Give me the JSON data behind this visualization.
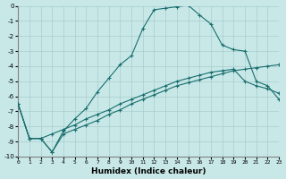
{
  "xlabel": "Humidex (Indice chaleur)",
  "bg_color": "#c8e8e8",
  "grid_color": "#a8cccc",
  "line_color": "#1a6e6e",
  "xlim": [
    0,
    23
  ],
  "ylim": [
    -10,
    0
  ],
  "ytick_vals": [
    0,
    -1,
    -2,
    -3,
    -4,
    -5,
    -6,
    -7,
    -8,
    -9,
    -10
  ],
  "xtick_vals": [
    0,
    1,
    2,
    3,
    4,
    5,
    6,
    7,
    8,
    9,
    10,
    11,
    12,
    13,
    14,
    15,
    16,
    17,
    18,
    19,
    20,
    21,
    22,
    23
  ],
  "line_main_x": [
    0,
    1,
    2,
    3,
    4,
    5,
    6,
    7,
    8,
    9,
    10,
    11,
    12,
    13,
    14,
    15,
    16,
    17,
    18,
    19,
    20,
    21,
    22,
    23
  ],
  "line_main_y": [
    -6.5,
    -8.8,
    -8.8,
    -9.7,
    -8.3,
    -7.5,
    -6.8,
    -5.7,
    -4.8,
    -3.9,
    -3.3,
    -1.5,
    -0.25,
    -0.15,
    -0.05,
    0.05,
    -0.6,
    -1.2,
    -2.6,
    -2.9,
    -3.0,
    -5.0,
    -5.3,
    -6.2
  ],
  "line_mid_x": [
    0,
    1,
    2,
    3,
    4,
    5,
    6,
    7,
    8,
    9,
    10,
    11,
    12,
    13,
    14,
    15,
    16,
    17,
    18,
    19,
    20,
    21,
    22,
    23
  ],
  "line_mid_y": [
    -6.5,
    -8.8,
    -8.8,
    -8.5,
    -8.2,
    -7.9,
    -7.5,
    -7.2,
    -6.9,
    -6.5,
    -6.2,
    -5.9,
    -5.6,
    -5.3,
    -5.0,
    -4.8,
    -4.6,
    -4.4,
    -4.3,
    -4.2,
    -5.0,
    -5.3,
    -5.5,
    -5.8
  ],
  "line_low_x": [
    0,
    1,
    2,
    3,
    4,
    5,
    6,
    7,
    8,
    9,
    10,
    11,
    12,
    13,
    14,
    15,
    16,
    17,
    18,
    19,
    20,
    21,
    22,
    23
  ],
  "line_low_y": [
    -6.5,
    -8.8,
    -8.8,
    -9.7,
    -8.5,
    -8.2,
    -7.9,
    -7.6,
    -7.2,
    -6.9,
    -6.5,
    -6.2,
    -5.9,
    -5.6,
    -5.3,
    -5.1,
    -4.9,
    -4.7,
    -4.5,
    -4.3,
    -4.2,
    -4.1,
    -4.0,
    -3.9
  ]
}
